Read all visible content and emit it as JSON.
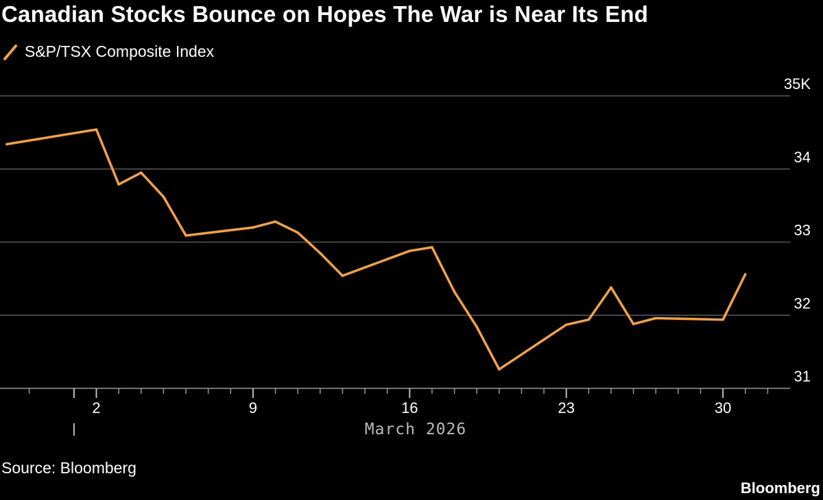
{
  "header": {
    "title": "Canadian Stocks Bounce on Hopes The War is Near Its End"
  },
  "footer": {
    "source": "Source: Bloomberg",
    "brand": "Bloomberg"
  },
  "colors": {
    "background": "#000000",
    "series": "#F7A23B",
    "grid": "#5a5a5a",
    "text": "#ffffff"
  },
  "chart_data": {
    "type": "line",
    "title": "Canadian Stocks Bounce on Hopes The War is Near Its End",
    "xlabel": "March 2026",
    "ylabel": "",
    "ylim": [
      31,
      35
    ],
    "y_ticks": [
      31,
      32,
      33,
      34,
      35
    ],
    "y_tick_labels": [
      "31",
      "32",
      "33",
      "34",
      "35K"
    ],
    "x_range": [
      "2026-02-26",
      "2026-04-02"
    ],
    "x_tick_labels": [
      {
        "date": "2026-03-02",
        "label": "2"
      },
      {
        "date": "2026-03-09",
        "label": "9"
      },
      {
        "date": "2026-03-16",
        "label": "16"
      },
      {
        "date": "2026-03-23",
        "label": "23"
      },
      {
        "date": "2026-03-30",
        "label": "30"
      }
    ],
    "x_minor_ticks": [
      "2026-02-27",
      "2026-03-03",
      "2026-03-04",
      "2026-03-05",
      "2026-03-06",
      "2026-03-07",
      "2026-03-08",
      "2026-03-10",
      "2026-03-11",
      "2026-03-12",
      "2026-03-13",
      "2026-03-14",
      "2026-03-15",
      "2026-03-17",
      "2026-03-18",
      "2026-03-19",
      "2026-03-20",
      "2026-03-21",
      "2026-03-22",
      "2026-03-24",
      "2026-03-25",
      "2026-03-26",
      "2026-03-27",
      "2026-03-28",
      "2026-03-29",
      "2026-03-31",
      "2026-04-01"
    ],
    "year_boundary": "2026-03-01",
    "grid": true,
    "legend_position": "top-left",
    "series": [
      {
        "name": "S&P/TSX Composite Index",
        "color": "#F7A23B",
        "points": [
          {
            "x": "2026-02-26",
            "y": 34.34
          },
          {
            "x": "2026-03-02",
            "y": 34.54
          },
          {
            "x": "2026-03-03",
            "y": 33.79
          },
          {
            "x": "2026-03-04",
            "y": 33.95
          },
          {
            "x": "2026-03-05",
            "y": 33.62
          },
          {
            "x": "2026-03-06",
            "y": 33.09
          },
          {
            "x": "2026-03-09",
            "y": 33.2
          },
          {
            "x": "2026-03-10",
            "y": 33.28
          },
          {
            "x": "2026-03-11",
            "y": 33.13
          },
          {
            "x": "2026-03-12",
            "y": 32.85
          },
          {
            "x": "2026-03-13",
            "y": 32.54
          },
          {
            "x": "2026-03-16",
            "y": 32.88
          },
          {
            "x": "2026-03-17",
            "y": 32.93
          },
          {
            "x": "2026-03-18",
            "y": 32.32
          },
          {
            "x": "2026-03-19",
            "y": 31.84
          },
          {
            "x": "2026-03-20",
            "y": 31.26
          },
          {
            "x": "2026-03-23",
            "y": 31.87
          },
          {
            "x": "2026-03-24",
            "y": 31.94
          },
          {
            "x": "2026-03-25",
            "y": 32.38
          },
          {
            "x": "2026-03-26",
            "y": 31.88
          },
          {
            "x": "2026-03-27",
            "y": 31.96
          },
          {
            "x": "2026-03-30",
            "y": 31.94
          },
          {
            "x": "2026-03-31",
            "y": 32.56
          }
        ]
      }
    ]
  }
}
